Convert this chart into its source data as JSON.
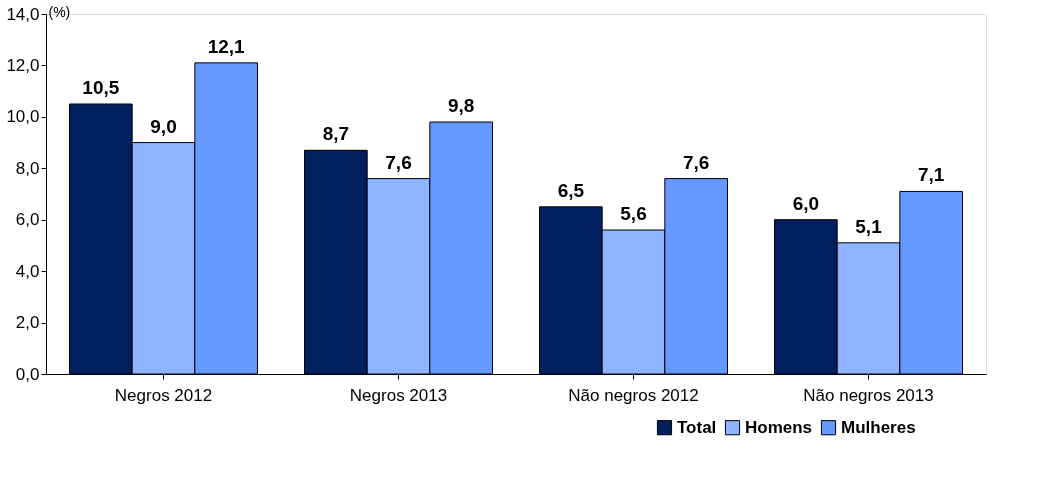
{
  "chart_data": {
    "type": "bar",
    "ylabel": "(%)",
    "categories": [
      "Negros 2012",
      "Negros 2013",
      "Não negros 2012",
      "Não negros 2013"
    ],
    "series": [
      {
        "name": "Total",
        "color": "#002060",
        "values": [
          10.5,
          8.7,
          6.5,
          6.0
        ],
        "value_labels": [
          "10,5",
          "8,7",
          "6,5",
          "6,0"
        ]
      },
      {
        "name": "Homens",
        "color": "#8eb4ff",
        "values": [
          9.0,
          7.6,
          5.6,
          5.1
        ],
        "value_labels": [
          "9,0",
          "7,6",
          "5,6",
          "5,1"
        ]
      },
      {
        "name": "Mulheres",
        "color": "#6699ff",
        "values": [
          12.1,
          9.8,
          7.6,
          7.1
        ],
        "value_labels": [
          "12,1",
          "9,8",
          "7,6",
          "7,1"
        ]
      }
    ],
    "ylim": [
      0,
      14
    ],
    "yticks": [
      {
        "value": 0,
        "label": "0,0"
      },
      {
        "value": 2,
        "label": "2,0"
      },
      {
        "value": 4,
        "label": "4,0"
      },
      {
        "value": 6,
        "label": "6,0"
      },
      {
        "value": 8,
        "label": "8,0"
      },
      {
        "value": 10,
        "label": "10,0"
      },
      {
        "value": 12,
        "label": "12,0"
      },
      {
        "value": 14,
        "label": "14,0"
      }
    ],
    "grid": false,
    "legend": "bottom right"
  }
}
